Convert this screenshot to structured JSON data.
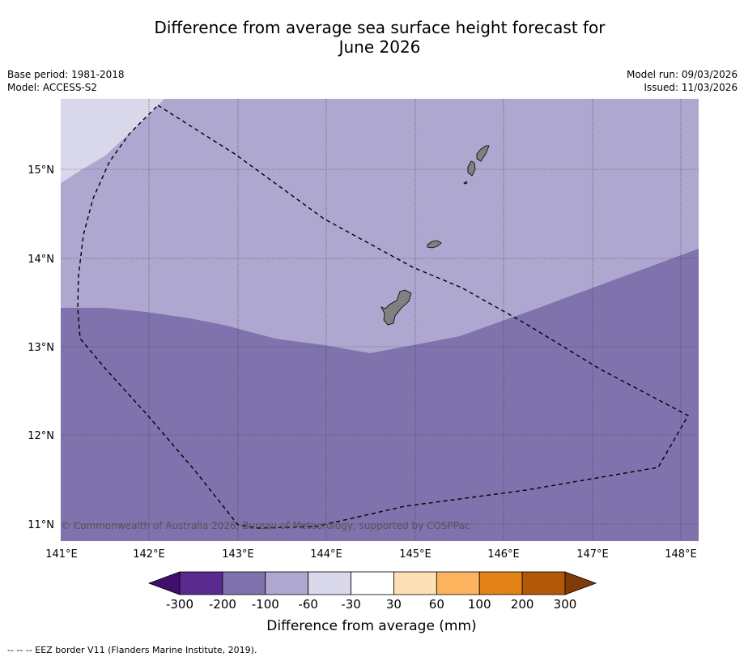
{
  "title_line1": "Difference from average sea surface height forecast for",
  "title_line2": "June 2026",
  "base_period": "Base period: 1981-2018",
  "model": "Model: ACCESS-S2",
  "model_run": "Model run: 09/03/2026",
  "issued": "Issued: 11/03/2026",
  "copyright": "© Commonwealth of Australia 2026, Bureau of Meteorology, supported by COSPPac",
  "lat_labels": [
    "15°N",
    "14°N",
    "13°N",
    "12°N",
    "11°N"
  ],
  "lon_labels": [
    "141°E",
    "142°E",
    "143°E",
    "144°E",
    "145°E",
    "146°E",
    "147°E",
    "148°E"
  ],
  "colorbar": {
    "title": "Difference from average (mm)",
    "ticks": [
      "-300",
      "-200",
      "-100",
      "-60",
      "-30",
      "30",
      "60",
      "100",
      "200",
      "300"
    ],
    "colors": [
      "#3f0f6b",
      "#5a2a8e",
      "#7f72ad",
      "#aea8d0",
      "#d9d8ea",
      "#ffffff",
      "#fde0b6",
      "#fbb35e",
      "#e28115",
      "#b35807",
      "#7f3b08"
    ]
  },
  "legend_footer": "-- -- -- EEZ border V11 (Flanders Marine Institute, 2019)."
}
